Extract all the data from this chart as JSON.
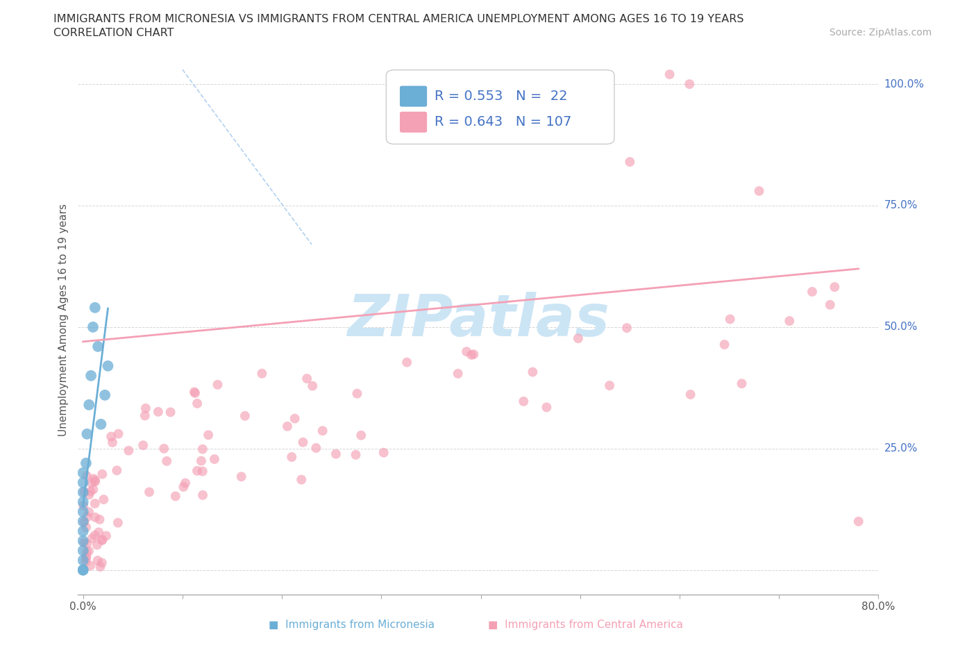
{
  "title_line1": "IMMIGRANTS FROM MICRONESIA VS IMMIGRANTS FROM CENTRAL AMERICA UNEMPLOYMENT AMONG AGES 16 TO 19 YEARS",
  "title_line2": "CORRELATION CHART",
  "source_text": "Source: ZipAtlas.com",
  "ylabel": "Unemployment Among Ages 16 to 19 years",
  "xlim": [
    -0.005,
    0.8
  ],
  "ylim": [
    -0.05,
    1.08
  ],
  "ytick_positions": [
    0.0,
    0.25,
    0.5,
    0.75,
    1.0
  ],
  "ytick_labels_right": [
    "",
    "25.0%",
    "50.0%",
    "75.0%",
    "100.0%"
  ],
  "R_micronesia": 0.553,
  "N_micronesia": 22,
  "R_central": 0.643,
  "N_central": 107,
  "color_micronesia": "#6baed6",
  "color_central": "#f4a0b5",
  "legend_micronesia": "Immigrants from Micronesia",
  "legend_central": "Immigrants from Central America",
  "background_color": "#ffffff",
  "grid_color": "#cccccc",
  "watermark_color": "#cce5f5",
  "dashed_line_color": "#aaccee",
  "text_color": "#4472c4",
  "title_color": "#333333"
}
